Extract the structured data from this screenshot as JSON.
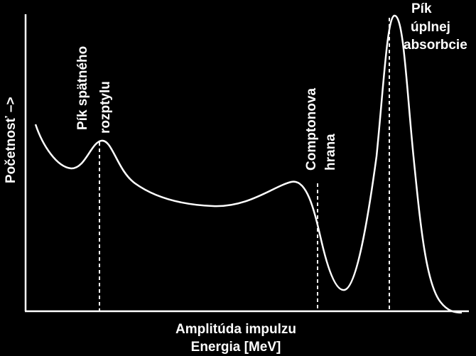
{
  "y_label": "Početnosť –>",
  "x_label": {
    "lines": [
      "Amplitúda impulzu",
      "Energia [MeV]"
    ]
  },
  "annotations": [
    {
      "lines": [
        "Pík spätného",
        "rozptylu"
      ]
    },
    {
      "lines": [
        "Comptonova",
        "hrana"
      ]
    },
    {
      "lines": [
        "Pík",
        "úplnej",
        "absorbcie"
      ]
    }
  ]
}
